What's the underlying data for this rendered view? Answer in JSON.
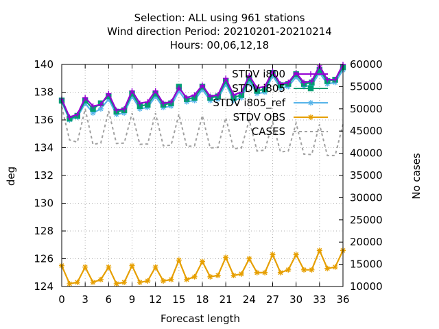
{
  "chart_data": {
    "type": "line",
    "title": [
      "Selection: ALL using   961 stations",
      "Wind direction   Period: 20210201-20210214",
      "Hours:  00,06,12,18"
    ],
    "xlabel": "Forecast length",
    "ylabel": "deg",
    "y2label": "No cases",
    "xlim": [
      0,
      36
    ],
    "ylim": [
      124,
      140
    ],
    "y2lim": [
      10000,
      60000
    ],
    "xticks": [
      "0",
      "3",
      "6",
      "9",
      "12",
      "15",
      "18",
      "21",
      "24",
      "27",
      "30",
      "33",
      "36"
    ],
    "yticks": [
      "124",
      "126",
      "128",
      "130",
      "132",
      "134",
      "136",
      "138",
      "140"
    ],
    "y2ticks": [
      "10000",
      "15000",
      "20000",
      "25000",
      "30000",
      "35000",
      "40000",
      "45000",
      "50000",
      "55000",
      "60000"
    ],
    "grid": true,
    "legend_position": "top-right",
    "x": [
      0,
      1,
      2,
      3,
      4,
      5,
      6,
      7,
      8,
      9,
      10,
      11,
      12,
      13,
      14,
      15,
      16,
      17,
      18,
      19,
      20,
      21,
      22,
      23,
      24,
      25,
      26,
      27,
      28,
      29,
      30,
      31,
      32,
      33,
      34,
      35,
      36
    ],
    "series": [
      {
        "name": "STDV i800",
        "color": "#9400d3",
        "marker": "plus",
        "axis": "y",
        "values": [
          137.5,
          136.2,
          136.4,
          137.6,
          137.0,
          137.1,
          137.9,
          136.7,
          136.8,
          138.1,
          137.2,
          137.3,
          138.1,
          137.2,
          137.3,
          138.3,
          137.6,
          137.8,
          138.5,
          137.7,
          137.8,
          139.0,
          137.8,
          138.0,
          139.2,
          138.3,
          138.4,
          139.5,
          138.6,
          138.7,
          139.4,
          138.7,
          138.8,
          139.9,
          138.9,
          138.9,
          140.0
        ]
      },
      {
        "name": "STDV i805",
        "color": "#009e73",
        "marker": "square",
        "axis": "y",
        "values": [
          137.4,
          136.1,
          136.3,
          137.4,
          136.8,
          137.2,
          137.7,
          136.6,
          136.7,
          137.9,
          137.0,
          137.1,
          137.9,
          137.1,
          137.2,
          138.4,
          137.5,
          137.6,
          138.4,
          137.6,
          137.7,
          138.8,
          137.6,
          137.8,
          139.0,
          138.1,
          138.2,
          139.4,
          138.5,
          138.6,
          139.3,
          138.6,
          138.7,
          139.6,
          138.8,
          138.9,
          139.8
        ]
      },
      {
        "name": "STDV i805_ref",
        "color": "#56b4e9",
        "marker": "star",
        "axis": "y",
        "values": [
          137.3,
          136.0,
          136.2,
          137.2,
          136.5,
          136.8,
          137.5,
          136.4,
          136.5,
          137.7,
          136.8,
          136.9,
          137.7,
          136.9,
          137.0,
          138.1,
          137.3,
          137.4,
          138.2,
          137.4,
          137.5,
          138.6,
          137.4,
          137.6,
          138.8,
          137.9,
          138.0,
          139.2,
          138.3,
          138.4,
          139.1,
          138.4,
          138.5,
          139.4,
          138.6,
          138.7,
          139.6
        ]
      },
      {
        "name": "STDV OBS",
        "color": "#e69f00",
        "marker": "star",
        "axis": "y",
        "values": [
          125.5,
          124.2,
          124.3,
          125.4,
          124.3,
          124.5,
          125.4,
          124.2,
          124.3,
          125.5,
          124.3,
          124.4,
          125.4,
          124.4,
          124.5,
          125.9,
          124.5,
          124.7,
          125.8,
          124.7,
          124.8,
          126.1,
          124.8,
          124.9,
          126.0,
          125.0,
          125.0,
          126.3,
          125.0,
          125.2,
          126.3,
          125.2,
          125.2,
          126.6,
          125.3,
          125.4,
          126.6
        ]
      },
      {
        "name": "CASES",
        "color": "#a0a0a0",
        "dash": "dotted",
        "axis": "y2",
        "values": [
          50500,
          43000,
          42500,
          50000,
          42000,
          42300,
          49500,
          42200,
          42300,
          49000,
          42000,
          42100,
          49000,
          41700,
          41800,
          48800,
          41500,
          41700,
          48500,
          41200,
          41300,
          48000,
          41000,
          41200,
          47500,
          40500,
          40700,
          47000,
          40300,
          40500,
          46800,
          39800,
          39700,
          46500,
          39500,
          39500,
          46500
        ]
      }
    ]
  }
}
